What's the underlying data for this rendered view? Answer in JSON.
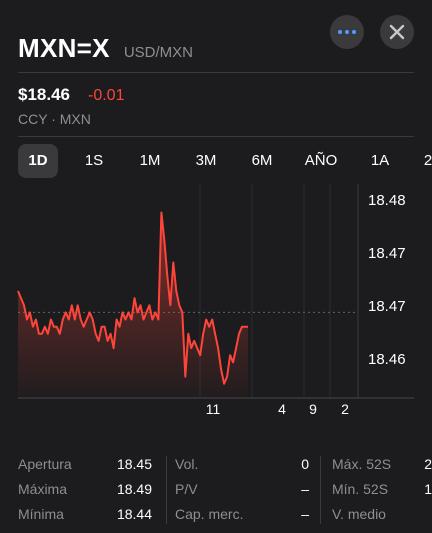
{
  "header": {
    "symbol": "MXN=X",
    "pair": "USD/MXN",
    "more_icon": "ellipsis-icon",
    "close_icon": "close-icon"
  },
  "quote": {
    "price": "$18.46",
    "change": "-0.01",
    "market": "CCY · MXN"
  },
  "tabs": [
    {
      "label": "1D",
      "active": true
    },
    {
      "label": "1S",
      "active": false
    },
    {
      "label": "1M",
      "active": false
    },
    {
      "label": "3M",
      "active": false
    },
    {
      "label": "6M",
      "active": false
    },
    {
      "label": "AÑO",
      "active": false
    },
    {
      "label": "1A",
      "active": false
    },
    {
      "label": "2",
      "active": false
    }
  ],
  "colors": {
    "background": "#1c1c1e",
    "line": "#ff453a",
    "accent": "#4a9df8",
    "muted": "#8e8e93"
  },
  "chart_data": {
    "type": "line",
    "y_tick_labels": [
      "18.48",
      "18.47",
      "18.47",
      "18.46"
    ],
    "x_tick_labels": [
      "11",
      "4",
      "9",
      "2"
    ],
    "ylim": [
      18.455,
      18.485
    ],
    "previous_close": 18.467,
    "series": [
      {
        "values": [
          18.47,
          18.469,
          18.468,
          18.466,
          18.467,
          18.465,
          18.466,
          18.464,
          18.464,
          18.465,
          18.464,
          18.466,
          18.465,
          18.465,
          18.464,
          18.466,
          18.467,
          18.466,
          18.468,
          18.466,
          18.468,
          18.466,
          18.465,
          18.466,
          18.467,
          18.466,
          18.464,
          18.463,
          18.465,
          18.465,
          18.463,
          18.464,
          18.462,
          18.466,
          18.465,
          18.467,
          18.466,
          18.467,
          18.466,
          18.469,
          18.467,
          18.468,
          18.466,
          18.467,
          18.468,
          18.466,
          18.467,
          18.466,
          18.481,
          18.477,
          18.472,
          18.468,
          18.474,
          18.47,
          18.468,
          18.467,
          18.458,
          18.464,
          18.462,
          18.463,
          18.462,
          18.461,
          18.464,
          18.466,
          18.465,
          18.466,
          18.464,
          18.462,
          18.459,
          18.457,
          18.458,
          18.461,
          18.46,
          18.462,
          18.464,
          18.465,
          18.465,
          18.465
        ]
      }
    ]
  },
  "stats": {
    "col1": [
      {
        "label": "Apertura",
        "value": "18.45"
      },
      {
        "label": "Máxima",
        "value": "18.49"
      },
      {
        "label": "Mínima",
        "value": "18.44"
      }
    ],
    "col2": [
      {
        "label": "Vol.",
        "value": "0"
      },
      {
        "label": "P/V",
        "value": "–"
      },
      {
        "label": "Cap. merc.",
        "value": "–"
      }
    ],
    "col3": [
      {
        "label": "Máx. 52S",
        "value": "2"
      },
      {
        "label": "Mín. 52S",
        "value": "1"
      },
      {
        "label": "V. medio",
        "value": ""
      }
    ]
  }
}
